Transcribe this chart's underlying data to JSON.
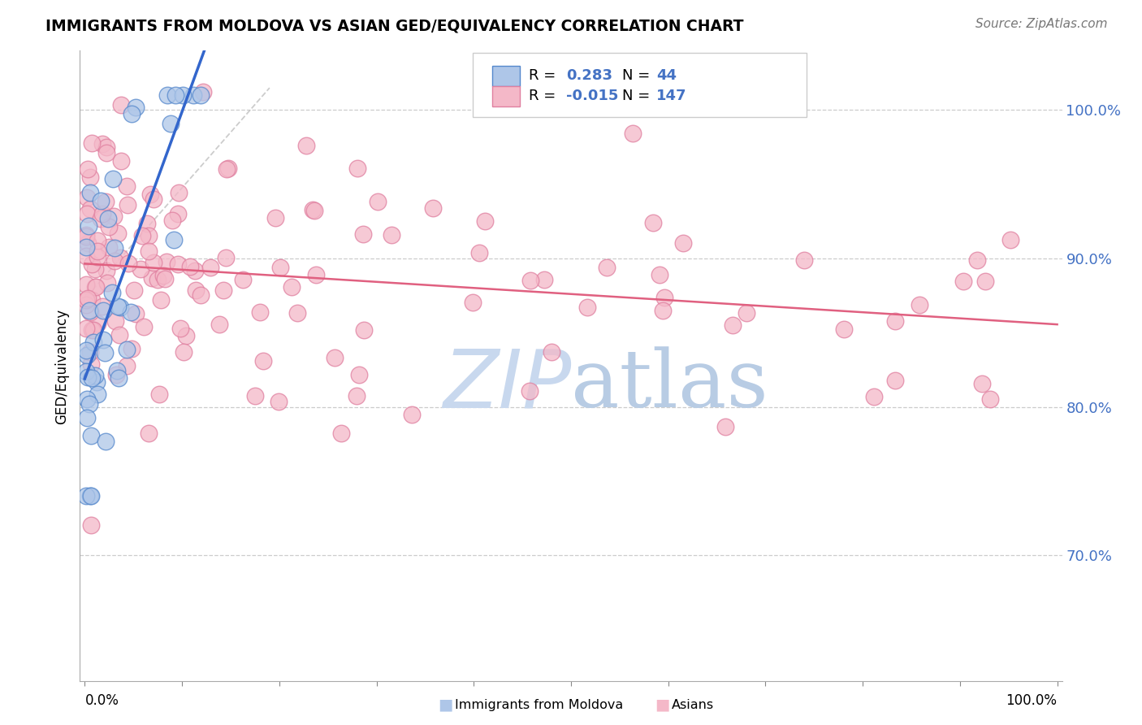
{
  "title": "IMMIGRANTS FROM MOLDOVA VS ASIAN GED/EQUIVALENCY CORRELATION CHART",
  "source": "Source: ZipAtlas.com",
  "ylabel": "GED/Equivalency",
  "yticks": [
    "70.0%",
    "80.0%",
    "90.0%",
    "100.0%"
  ],
  "ytick_vals": [
    0.7,
    0.8,
    0.9,
    1.0
  ],
  "ylim": [
    0.615,
    1.04
  ],
  "xlim": [
    -0.005,
    1.005
  ],
  "legend_blue_R": "0.283",
  "legend_blue_N": "44",
  "legend_pink_R": "-0.015",
  "legend_pink_N": "147",
  "blue_fill": "#aec6e8",
  "pink_fill": "#f4b8c8",
  "blue_edge": "#5588cc",
  "pink_edge": "#e080a0",
  "blue_line": "#3366cc",
  "pink_line": "#e06080",
  "gray_dash": "#c0c0c0",
  "watermark_color": "#c8d8ee",
  "tick_color": "#4472c4",
  "grid_color": "#cccccc"
}
